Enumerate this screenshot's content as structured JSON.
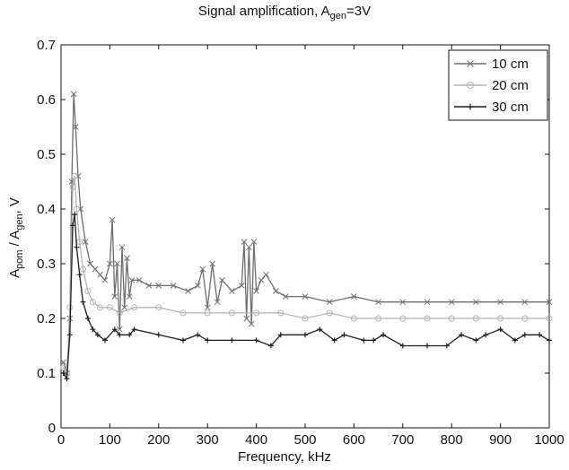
{
  "chart_data": {
    "type": "line",
    "title": {
      "prefix": "Signal amplification, A",
      "sub": "gen",
      "suffix": "=3V"
    },
    "xlabel": "Frequency, kHz",
    "ylabel": {
      "p1": "A",
      "s1": "pom",
      "p2": " / A",
      "s2": "gen",
      "p3": ", V"
    },
    "xlim": [
      0,
      1000
    ],
    "ylim": [
      0,
      0.7
    ],
    "xticks": [
      "0",
      "100",
      "200",
      "300",
      "400",
      "500",
      "600",
      "700",
      "800",
      "900",
      "1000"
    ],
    "yticks": [
      "0",
      "0.1",
      "0.2",
      "0.3",
      "0.4",
      "0.5",
      "0.6",
      "0.7"
    ],
    "grid": false,
    "legend_position": "top-right",
    "series": [
      {
        "name": "10 cm",
        "color": "#6e6e6e",
        "marker": "x",
        "points": [
          [
            5,
            0.12
          ],
          [
            12,
            0.1
          ],
          [
            18,
            0.2
          ],
          [
            22,
            0.45
          ],
          [
            26,
            0.61
          ],
          [
            30,
            0.55
          ],
          [
            35,
            0.46
          ],
          [
            40,
            0.4
          ],
          [
            50,
            0.34
          ],
          [
            60,
            0.3
          ],
          [
            70,
            0.29
          ],
          [
            80,
            0.28
          ],
          [
            90,
            0.27
          ],
          [
            100,
            0.3
          ],
          [
            105,
            0.38
          ],
          [
            110,
            0.24
          ],
          [
            115,
            0.3
          ],
          [
            120,
            0.18
          ],
          [
            125,
            0.33
          ],
          [
            130,
            0.22
          ],
          [
            135,
            0.31
          ],
          [
            140,
            0.24
          ],
          [
            145,
            0.27
          ],
          [
            160,
            0.27
          ],
          [
            180,
            0.26
          ],
          [
            200,
            0.26
          ],
          [
            230,
            0.26
          ],
          [
            260,
            0.25
          ],
          [
            280,
            0.26
          ],
          [
            290,
            0.29
          ],
          [
            300,
            0.22
          ],
          [
            310,
            0.3
          ],
          [
            320,
            0.23
          ],
          [
            330,
            0.27
          ],
          [
            350,
            0.25
          ],
          [
            370,
            0.26
          ],
          [
            375,
            0.34
          ],
          [
            380,
            0.2
          ],
          [
            385,
            0.33
          ],
          [
            390,
            0.19
          ],
          [
            395,
            0.34
          ],
          [
            400,
            0.25
          ],
          [
            410,
            0.27
          ],
          [
            420,
            0.28
          ],
          [
            440,
            0.25
          ],
          [
            460,
            0.24
          ],
          [
            500,
            0.24
          ],
          [
            550,
            0.23
          ],
          [
            600,
            0.24
          ],
          [
            650,
            0.23
          ],
          [
            700,
            0.23
          ],
          [
            750,
            0.23
          ],
          [
            800,
            0.23
          ],
          [
            850,
            0.23
          ],
          [
            900,
            0.23
          ],
          [
            950,
            0.23
          ],
          [
            1000,
            0.23
          ]
        ]
      },
      {
        "name": "20 cm",
        "color": "#b4b4b4",
        "marker": "o",
        "points": [
          [
            5,
            0.11
          ],
          [
            12,
            0.1
          ],
          [
            18,
            0.22
          ],
          [
            24,
            0.44
          ],
          [
            28,
            0.46
          ],
          [
            32,
            0.4
          ],
          [
            38,
            0.34
          ],
          [
            45,
            0.29
          ],
          [
            55,
            0.25
          ],
          [
            65,
            0.23
          ],
          [
            80,
            0.22
          ],
          [
            100,
            0.22
          ],
          [
            120,
            0.21
          ],
          [
            150,
            0.22
          ],
          [
            200,
            0.22
          ],
          [
            250,
            0.21
          ],
          [
            300,
            0.21
          ],
          [
            350,
            0.21
          ],
          [
            400,
            0.21
          ],
          [
            450,
            0.21
          ],
          [
            500,
            0.2
          ],
          [
            550,
            0.21
          ],
          [
            600,
            0.2
          ],
          [
            650,
            0.2
          ],
          [
            700,
            0.2
          ],
          [
            750,
            0.2
          ],
          [
            800,
            0.2
          ],
          [
            850,
            0.2
          ],
          [
            900,
            0.2
          ],
          [
            950,
            0.2
          ],
          [
            1000,
            0.2
          ]
        ]
      },
      {
        "name": "30 cm",
        "color": "#1e1e1e",
        "marker": "+",
        "points": [
          [
            5,
            0.1
          ],
          [
            12,
            0.09
          ],
          [
            18,
            0.17
          ],
          [
            24,
            0.37
          ],
          [
            28,
            0.39
          ],
          [
            32,
            0.33
          ],
          [
            38,
            0.28
          ],
          [
            45,
            0.23
          ],
          [
            55,
            0.2
          ],
          [
            65,
            0.18
          ],
          [
            75,
            0.17
          ],
          [
            90,
            0.16
          ],
          [
            110,
            0.18
          ],
          [
            120,
            0.17
          ],
          [
            140,
            0.17
          ],
          [
            150,
            0.18
          ],
          [
            200,
            0.17
          ],
          [
            250,
            0.16
          ],
          [
            280,
            0.17
          ],
          [
            300,
            0.16
          ],
          [
            350,
            0.16
          ],
          [
            400,
            0.16
          ],
          [
            430,
            0.15
          ],
          [
            450,
            0.17
          ],
          [
            500,
            0.17
          ],
          [
            530,
            0.18
          ],
          [
            560,
            0.16
          ],
          [
            580,
            0.17
          ],
          [
            620,
            0.16
          ],
          [
            640,
            0.16
          ],
          [
            660,
            0.17
          ],
          [
            700,
            0.15
          ],
          [
            750,
            0.15
          ],
          [
            790,
            0.15
          ],
          [
            820,
            0.17
          ],
          [
            850,
            0.16
          ],
          [
            870,
            0.17
          ],
          [
            900,
            0.18
          ],
          [
            930,
            0.16
          ],
          [
            950,
            0.17
          ],
          [
            980,
            0.17
          ],
          [
            1000,
            0.16
          ]
        ]
      }
    ]
  }
}
